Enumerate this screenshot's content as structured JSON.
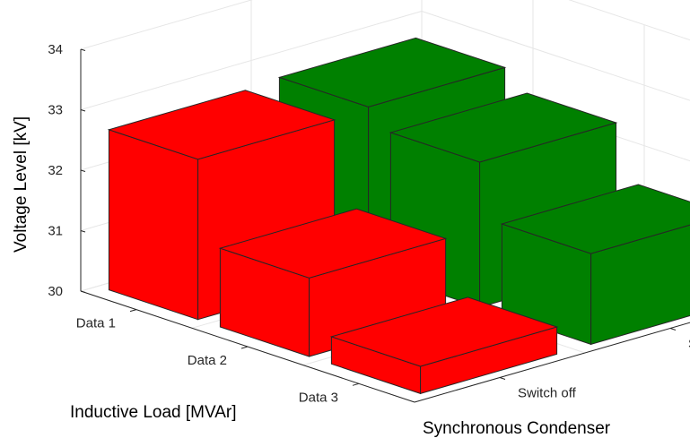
{
  "chart_data": {
    "type": "bar3d",
    "title": "",
    "xlabel": "Inductive Load [MVAr]",
    "ylabel": "Synchronous Condenser",
    "zlabel": "Voltage Level [kV]",
    "x_categories": [
      "Data 1",
      "Data 2",
      "Data 3"
    ],
    "y_categories": [
      "Switch off",
      "Switch on"
    ],
    "zlim": [
      30,
      34
    ],
    "z_ticks": [
      30,
      31,
      32,
      33,
      34
    ],
    "grid": true,
    "series": [
      {
        "name": "Switch off",
        "color": "#ff0000",
        "values": [
          32.65,
          31.3,
          30.45
        ]
      },
      {
        "name": "Switch on",
        "color": "#008000",
        "values": [
          32.7,
          32.4,
          31.5
        ]
      }
    ]
  }
}
